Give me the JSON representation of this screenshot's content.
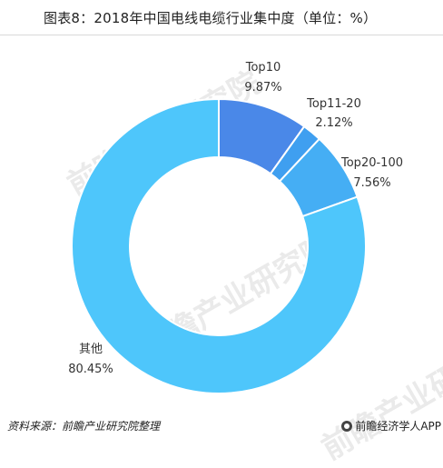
{
  "header": {
    "title": "图表8：2018年中国电线电缆行业集中度（单位：%）"
  },
  "chart_data": {
    "type": "pie",
    "donut": true,
    "categories": [
      "Top10",
      "Top11-20",
      "Top20-100",
      "其他"
    ],
    "values": [
      9.87,
      2.12,
      7.56,
      80.45
    ],
    "value_labels": [
      "9.87%",
      "2.12%",
      "7.56%",
      "80.45%"
    ],
    "colors": [
      "#4a88e8",
      "#3f9ff0",
      "#45aef4",
      "#4ec6fb"
    ],
    "title": "图表8：2018年中国电线电缆行业集中度（单位：%）",
    "unit": "%"
  },
  "footer": {
    "source": "资料来源：前瞻产业研究院整理",
    "brand": "前瞻经济学人APP"
  },
  "watermark": {
    "text": "前瞻产业研究院",
    "icon": "qianzhan-logo-icon"
  }
}
